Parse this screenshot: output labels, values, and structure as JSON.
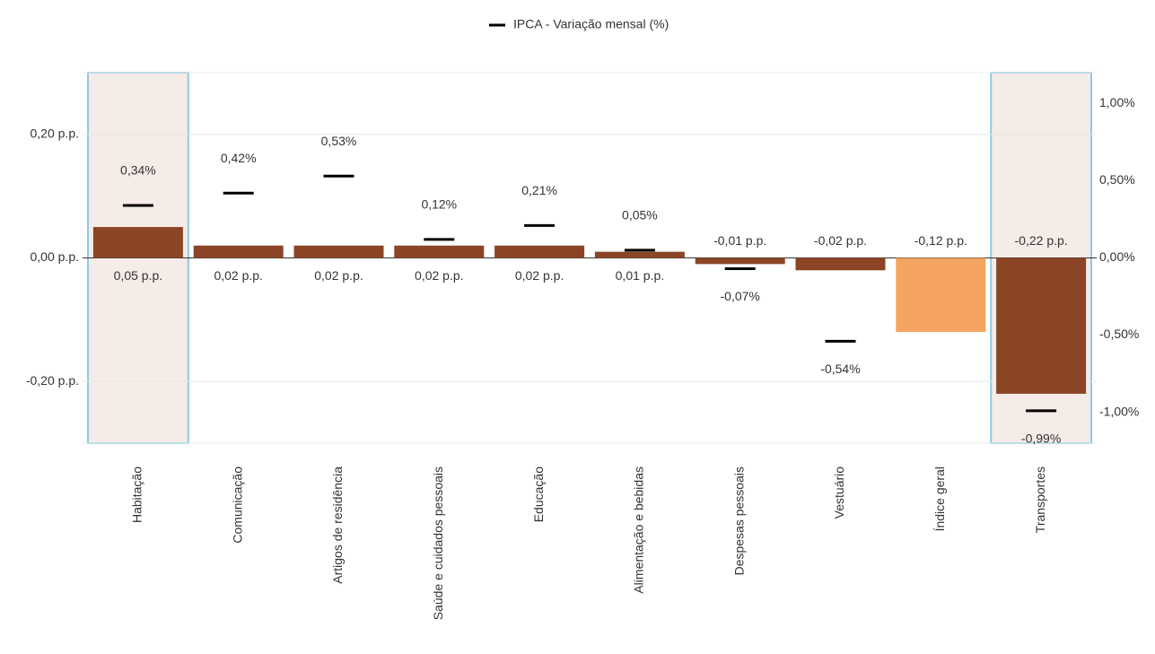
{
  "chart_data": {
    "type": "bar",
    "categories": [
      "Habitação",
      "Comunicação",
      "Artigos de residência",
      "Saúde e cuidados pessoais",
      "Educação",
      "Alimentação e bebidas",
      "Despesas pessoais",
      "Vestuário",
      "Índice geral",
      "Transportes"
    ],
    "values": [
      0.05,
      0.02,
      0.02,
      0.02,
      0.02,
      0.01,
      -0.01,
      -0.02,
      -0.12,
      -0.22
    ],
    "value_labels": [
      "0,05 p.p.",
      "0,02 p.p.",
      "0,02 p.p.",
      "0,02 p.p.",
      "0,02 p.p.",
      "0,01 p.p.",
      "-0,01 p.p.",
      "-0,02 p.p.",
      "-0,12 p.p.",
      "-0,22 p.p."
    ],
    "colors": [
      "#8b4526",
      "#8b4526",
      "#8b4526",
      "#8b4526",
      "#8b4526",
      "#8b4526",
      "#8b4526",
      "#8b4526",
      "#f4a460",
      "#8b4526"
    ],
    "highlight": [
      0,
      9
    ],
    "series": [
      {
        "name": "IPCA - Variação mensal (%)",
        "color": "#000000",
        "axis": "y2",
        "values": [
          0.34,
          0.42,
          0.53,
          0.12,
          0.21,
          0.05,
          -0.07,
          -0.54,
          null,
          -0.99
        ],
        "value_labels": [
          "0,34%",
          "0,42%",
          "0,53%",
          "0,12%",
          "0,21%",
          "0,05%",
          "-0,07%",
          "-0,54%",
          null,
          "-0,99%"
        ]
      }
    ],
    "ylim": [
      -0.3,
      0.3
    ],
    "yticks": [
      {
        "value": 0.2,
        "label": "0,20 p.p."
      },
      {
        "value": 0,
        "label": "0,00 p.p."
      },
      {
        "value": -0.2,
        "label": "-0,20 p.p."
      }
    ],
    "y2lim": [
      -1.2,
      1.2
    ],
    "y2ticks": [
      {
        "value": 1,
        "label": "1,00%"
      },
      {
        "value": 0.5,
        "label": "0,50%"
      },
      {
        "value": 0,
        "label": "0,00%"
      },
      {
        "value": -0.5,
        "label": "-0,50%"
      },
      {
        "value": -1,
        "label": "-1,00%"
      }
    ],
    "grid": true,
    "legend": "top"
  }
}
